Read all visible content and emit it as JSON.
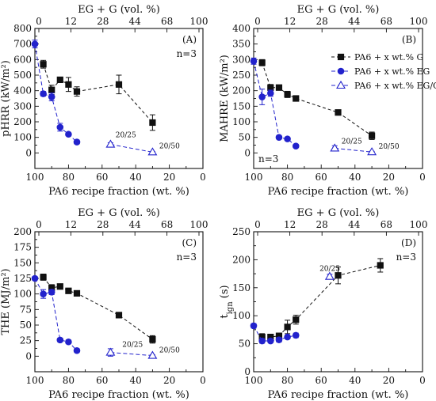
{
  "chart_data": [
    {
      "type": "scatter",
      "panel_label": "(A)",
      "n_label": "n=3",
      "xlabel": "PA6 recipe fraction (wt. %)",
      "x2label": "EG + G (vol. %)",
      "ylabel": "pHRR (kW/m²)",
      "xlim": [
        100,
        0
      ],
      "ylim": [
        -100,
        800
      ],
      "xticks": [
        100,
        80,
        60,
        40,
        20,
        0
      ],
      "x2ticks": [
        0,
        12,
        28,
        44,
        68,
        100
      ],
      "yticks": [
        0,
        100,
        200,
        300,
        400,
        500,
        600,
        700,
        800
      ],
      "series": [
        {
          "name": "PA6 + x wt.% G",
          "color": "#111111",
          "marker": "square",
          "fill": true,
          "dash": "4,3",
          "x": [
            95,
            90,
            85,
            80,
            75,
            50,
            30
          ],
          "y": [
            570,
            405,
            470,
            440,
            395,
            440,
            195
          ],
          "err": [
            25,
            30,
            15,
            45,
            30,
            60,
            50
          ]
        },
        {
          "name": "PA6 + x wt.% EG",
          "color": "#2222cc",
          "marker": "circle",
          "fill": true,
          "dash": "5,3",
          "x": [
            100,
            95,
            90,
            85,
            80,
            75
          ],
          "y": [
            700,
            380,
            360,
            165,
            120,
            70
          ],
          "err": [
            25,
            15,
            25,
            25,
            10,
            12
          ]
        },
        {
          "name": "PA6 + x wt.% EG/G",
          "color": "#2222cc",
          "marker": "triangle",
          "fill": false,
          "dash": "5,3",
          "x": [
            55,
            30
          ],
          "y": [
            55,
            5
          ],
          "err": [
            10,
            3
          ]
        }
      ],
      "annotations": [
        {
          "text": "20/25",
          "x": 52,
          "y": 100
        },
        {
          "text": "20/50",
          "x": 26,
          "y": 30
        }
      ]
    },
    {
      "type": "scatter",
      "panel_label": "(B)",
      "n_label": "n=3",
      "xlabel": "PA6 recipe fraction (wt. %)",
      "x2label": "EG + G (vol. %)",
      "ylabel": "MAHRE (kW/m²)",
      "xlim": [
        100,
        0
      ],
      "ylim": [
        -50,
        400
      ],
      "xticks": [
        100,
        80,
        60,
        40,
        20,
        0
      ],
      "x2ticks": [
        0,
        12,
        28,
        44,
        68,
        100
      ],
      "yticks": [
        0,
        50,
        100,
        150,
        200,
        250,
        300,
        350,
        400
      ],
      "legend": {
        "position": "top-right",
        "entries": [
          "PA6 + x wt.% G",
          "PA6 + x wt.% EG",
          "PA6 + x wt.% EG/G"
        ]
      },
      "series": [
        {
          "name": "PA6 + x wt.% G",
          "color": "#111111",
          "marker": "square",
          "fill": true,
          "dash": "4,3",
          "x": [
            95,
            90,
            85,
            80,
            75,
            50,
            30
          ],
          "y": [
            290,
            210,
            210,
            188,
            175,
            130,
            55
          ],
          "err": [
            10,
            10,
            8,
            10,
            8,
            8,
            12
          ]
        },
        {
          "name": "PA6 + x wt.% EG",
          "color": "#2222cc",
          "marker": "circle",
          "fill": true,
          "dash": "5,3",
          "x": [
            100,
            95,
            90,
            85,
            80,
            75
          ],
          "y": [
            295,
            180,
            192,
            50,
            45,
            22
          ],
          "err": [
            10,
            25,
            10,
            5,
            5,
            5
          ]
        },
        {
          "name": "PA6 + x wt.% EG/G",
          "color": "#2222cc",
          "marker": "triangle",
          "fill": false,
          "dash": "5,3",
          "x": [
            52,
            30
          ],
          "y": [
            15,
            3
          ],
          "err": [
            8,
            2
          ]
        }
      ],
      "annotations": [
        {
          "text": "20/25",
          "x": 48,
          "y": 30
        },
        {
          "text": "20/50",
          "x": 26,
          "y": 14
        }
      ]
    },
    {
      "type": "scatter",
      "panel_label": "(C)",
      "n_label": "n=3",
      "xlabel": "PA6 recipe fraction (wt. %)",
      "x2label": "EG + G (vol. %)",
      "ylabel": "THE (MJ/m²)",
      "xlim": [
        100,
        0
      ],
      "ylim": [
        -25,
        200
      ],
      "xticks": [
        100,
        80,
        60,
        40,
        20,
        0
      ],
      "x2ticks": [
        0,
        12,
        28,
        44,
        68,
        100
      ],
      "yticks": [
        0,
        25,
        50,
        75,
        100,
        125,
        150,
        175,
        200
      ],
      "series": [
        {
          "name": "PA6 + x wt.% G",
          "color": "#111111",
          "marker": "square",
          "fill": true,
          "dash": "4,3",
          "x": [
            95,
            90,
            85,
            80,
            75,
            50,
            30
          ],
          "y": [
            127,
            110,
            112,
            105,
            101,
            66,
            27
          ],
          "err": [
            5,
            5,
            4,
            4,
            4,
            3,
            6
          ]
        },
        {
          "name": "PA6 + x wt.% EG",
          "color": "#2222cc",
          "marker": "circle",
          "fill": true,
          "dash": "5,3",
          "x": [
            100,
            95,
            90,
            85,
            80,
            75
          ],
          "y": [
            125,
            100,
            103,
            26,
            23,
            9
          ],
          "err": [
            3,
            7,
            4,
            3,
            3,
            3
          ]
        },
        {
          "name": "PA6 + x wt.% EG/G",
          "color": "#2222cc",
          "marker": "triangle",
          "fill": false,
          "dash": "5,3",
          "x": [
            55,
            30
          ],
          "y": [
            6,
            1
          ],
          "err": [
            6,
            1
          ]
        }
      ],
      "annotations": [
        {
          "text": "20/25",
          "x": 48,
          "y": 15
        },
        {
          "text": "20/50",
          "x": 26,
          "y": 6
        }
      ]
    },
    {
      "type": "scatter",
      "panel_label": "(D)",
      "n_label": "n=3",
      "xlabel": "PA6 recipe fraction (wt. %)",
      "x2label": "EG + G (vol. %)",
      "ylabel": "t_ign (s)",
      "ylabel_main": "t",
      "ylabel_sub": "ign",
      "ylabel_unit": " (s)",
      "xlim": [
        100,
        0
      ],
      "ylim": [
        0,
        250
      ],
      "xticks": [
        100,
        80,
        60,
        40,
        20,
        0
      ],
      "x2ticks": [
        0,
        12,
        28,
        44,
        68,
        100
      ],
      "yticks": [
        0,
        50,
        100,
        150,
        200,
        250
      ],
      "series": [
        {
          "name": "PA6 + x wt.% G",
          "color": "#111111",
          "marker": "square",
          "fill": true,
          "dash": "4,3",
          "x": [
            95,
            90,
            85,
            80,
            75,
            50,
            25
          ],
          "y": [
            62,
            62,
            64,
            80,
            93,
            172,
            190
          ],
          "err": [
            6,
            5,
            5,
            12,
            8,
            15,
            12
          ]
        },
        {
          "name": "PA6 + x wt.% EG",
          "color": "#2222cc",
          "marker": "circle",
          "fill": true,
          "dash": "5,3",
          "x": [
            100,
            95,
            90,
            85,
            80,
            75
          ],
          "y": [
            82,
            55,
            55,
            57,
            62,
            65
          ],
          "err": [
            4,
            4,
            3,
            4,
            3,
            4
          ]
        },
        {
          "name": "PA6 + x wt.% EG/G",
          "color": "#2222cc",
          "marker": "triangle",
          "fill": false,
          "dash": "5,3",
          "x": [
            55
          ],
          "y": [
            170
          ],
          "err": [
            4
          ]
        }
      ],
      "annotations": [
        {
          "text": "20/25",
          "x": 61,
          "y": 180
        }
      ]
    }
  ]
}
